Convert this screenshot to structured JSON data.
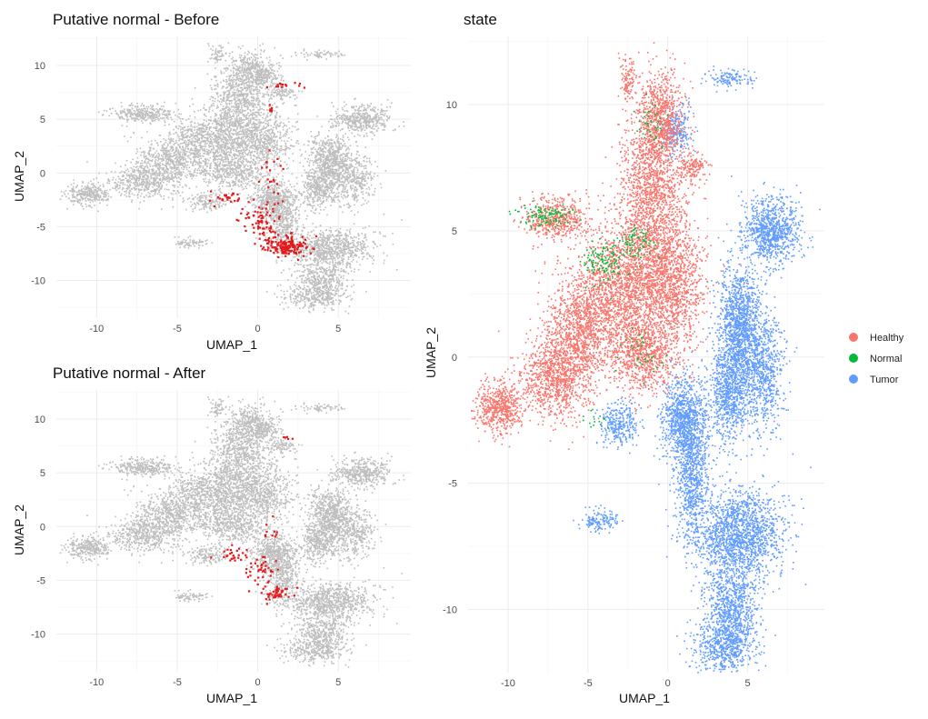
{
  "chart_data": [
    {
      "type": "scatter",
      "title": "Putative normal - Before",
      "xlabel": "UMAP_1",
      "ylabel": "UMAP_2",
      "xlim": [
        -12.5,
        9.5
      ],
      "ylim": [
        -13.5,
        12.7
      ],
      "xticks": [
        -10,
        -5,
        0,
        5
      ],
      "yticks": [
        -10,
        -5,
        0,
        5,
        10
      ],
      "grid": true,
      "colors": {
        "background_cells": "#bebebe",
        "highlight": "#e31a1c"
      },
      "highlight": {
        "description": "putative normal cells",
        "clusters": [
          {
            "x": 1.6,
            "y": -6.8,
            "sx": 0.75,
            "sy": 0.45,
            "n": 160
          },
          {
            "x": 0.2,
            "y": -4.3,
            "sx": 0.55,
            "sy": 0.85,
            "n": 70
          },
          {
            "x": -1.8,
            "y": -2.4,
            "sx": 0.6,
            "sy": 0.4,
            "n": 30
          },
          {
            "x": 0.9,
            "y": -0.6,
            "sx": 0.35,
            "sy": 1.1,
            "n": 22
          },
          {
            "x": 1.7,
            "y": 8.1,
            "sx": 0.5,
            "sy": 0.12,
            "n": 14
          },
          {
            "x": 0.8,
            "y": 6.0,
            "sx": 0.1,
            "sy": 0.3,
            "n": 6
          }
        ]
      }
    },
    {
      "type": "scatter",
      "title": "Putative normal - After",
      "xlabel": "UMAP_1",
      "ylabel": "UMAP_2",
      "xlim": [
        -12.5,
        9.5
      ],
      "ylim": [
        -13.5,
        12.7
      ],
      "xticks": [
        -10,
        -5,
        0,
        5
      ],
      "yticks": [
        -10,
        -5,
        0,
        5,
        10
      ],
      "grid": true,
      "colors": {
        "background_cells": "#bebebe",
        "highlight": "#e31a1c"
      },
      "highlight": {
        "description": "putative normal cells",
        "clusters": [
          {
            "x": 1.1,
            "y": -6.2,
            "sx": 0.45,
            "sy": 0.35,
            "n": 45
          },
          {
            "x": 0.3,
            "y": -4.3,
            "sx": 0.5,
            "sy": 0.8,
            "n": 40
          },
          {
            "x": -1.7,
            "y": -2.6,
            "sx": 0.55,
            "sy": 0.4,
            "n": 25
          },
          {
            "x": 0.8,
            "y": -0.8,
            "sx": 0.3,
            "sy": 0.8,
            "n": 10
          },
          {
            "x": 1.8,
            "y": 8.2,
            "sx": 0.25,
            "sy": 0.08,
            "n": 5
          }
        ]
      }
    },
    {
      "type": "scatter",
      "title": "state",
      "xlabel": "UMAP_1",
      "ylabel": "UMAP_2",
      "xlim": [
        -12.5,
        9.8
      ],
      "ylim": [
        -12.5,
        12.7
      ],
      "xticks": [
        -10,
        -5,
        0,
        5
      ],
      "yticks": [
        -10,
        -5,
        0,
        5,
        10
      ],
      "grid": true,
      "legend": {
        "placement": "right",
        "entries": [
          {
            "label": "Healthy",
            "color": "#f8766d"
          },
          {
            "label": "Normal",
            "color": "#00ba38"
          },
          {
            "label": "Tumor",
            "color": "#619cff"
          }
        ]
      }
    }
  ]
}
